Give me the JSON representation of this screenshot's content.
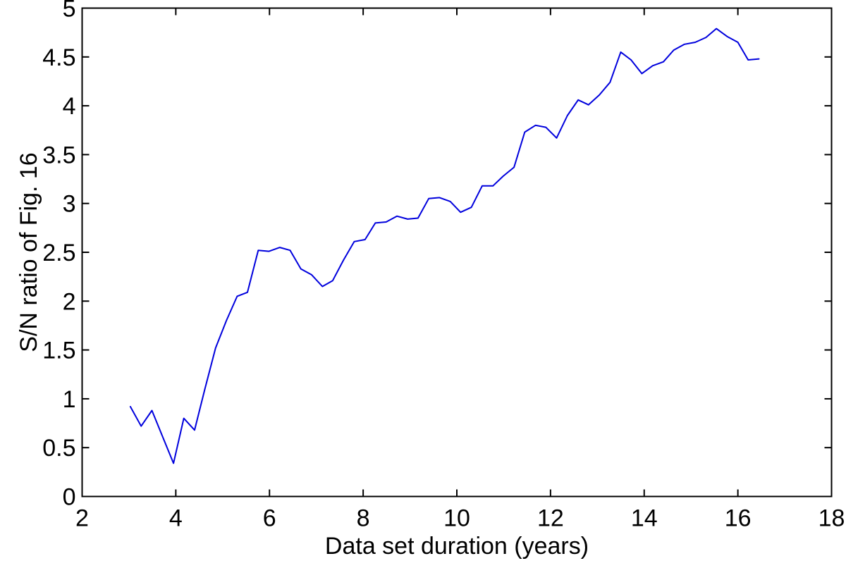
{
  "figure": {
    "background": "#ffffff"
  },
  "chart_data": {
    "type": "line",
    "title": "",
    "xlabel": "Data set duration (years)",
    "ylabel": "S/N ratio of Fig. 16",
    "xlim": [
      2,
      18
    ],
    "ylim": [
      0,
      5
    ],
    "xticks": [
      2,
      4,
      6,
      8,
      10,
      12,
      14,
      16,
      18
    ],
    "yticks": [
      0,
      0.5,
      1,
      1.5,
      2,
      2.5,
      3,
      3.5,
      4,
      4.5,
      5
    ],
    "grid": false,
    "legend": null,
    "line_color": "#0000dd",
    "axis_color": "#000000",
    "series": [
      {
        "name": "S/N ratio of Fig. 16",
        "x": [
          3.03,
          3.26,
          3.49,
          3.72,
          3.95,
          4.17,
          4.4,
          4.62,
          4.85,
          5.08,
          5.31,
          5.53,
          5.76,
          5.99,
          6.22,
          6.44,
          6.67,
          6.9,
          7.13,
          7.35,
          7.58,
          7.81,
          8.04,
          8.26,
          8.49,
          8.72,
          8.95,
          9.17,
          9.4,
          9.63,
          9.86,
          10.08,
          10.31,
          10.54,
          10.77,
          10.99,
          11.22,
          11.45,
          11.68,
          11.9,
          12.13,
          12.36,
          12.59,
          12.81,
          13.04,
          13.27,
          13.5,
          13.72,
          13.95,
          14.18,
          14.41,
          14.63,
          14.86,
          15.09,
          15.32,
          15.54,
          15.77,
          16.0,
          16.22,
          16.45
        ],
        "y": [
          0.92,
          0.72,
          0.88,
          0.61,
          0.34,
          0.8,
          0.68,
          1.1,
          1.52,
          1.8,
          2.05,
          2.09,
          2.52,
          2.51,
          2.55,
          2.52,
          2.33,
          2.27,
          2.15,
          2.21,
          2.42,
          2.61,
          2.63,
          2.8,
          2.81,
          2.87,
          2.84,
          2.85,
          3.05,
          3.06,
          3.02,
          2.91,
          2.96,
          3.18,
          3.18,
          3.28,
          3.37,
          3.73,
          3.8,
          3.78,
          3.67,
          3.9,
          4.06,
          4.01,
          4.11,
          4.24,
          4.55,
          4.47,
          4.33,
          4.41,
          4.45,
          4.57,
          4.63,
          4.65,
          4.7,
          4.79,
          4.71,
          4.65,
          4.47,
          4.48
        ]
      }
    ]
  }
}
